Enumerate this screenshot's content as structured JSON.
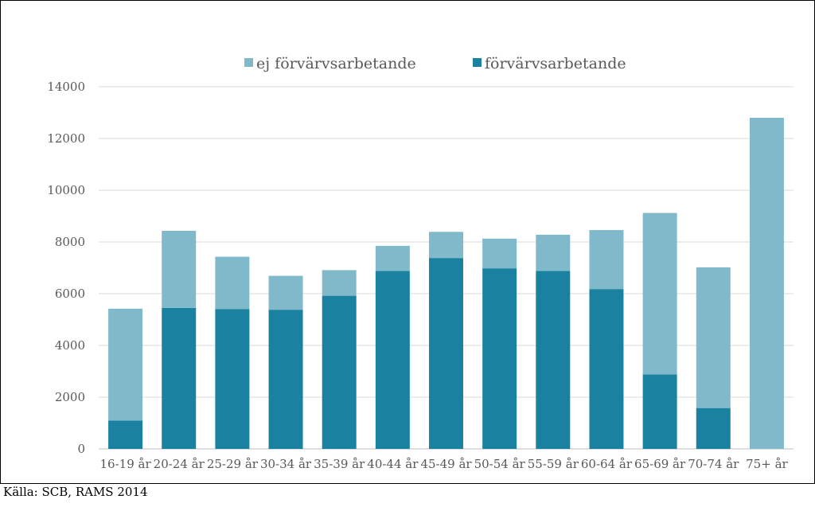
{
  "chart_data": {
    "type": "bar",
    "stacked": true,
    "categories": [
      "16-19 år",
      "20-24 år",
      "25-29 år",
      "30-34 år",
      "35-39 år",
      "40-44 år",
      "45-49 år",
      "50-54 år",
      "55-59 år",
      "60-64 år",
      "65-69 år",
      "70-74 år",
      "75+ år"
    ],
    "series": [
      {
        "name": "förvärvsarbetande",
        "color": "#1b81a0",
        "values": [
          1100,
          5450,
          5400,
          5380,
          5920,
          6880,
          7380,
          6980,
          6880,
          6180,
          2880,
          1580,
          0
        ]
      },
      {
        "name": "ej förvärvsarbetande",
        "color": "#7fb9ca",
        "values": [
          4320,
          2980,
          2030,
          1310,
          990,
          970,
          1010,
          1150,
          1400,
          2280,
          6240,
          5440,
          12800
        ]
      }
    ],
    "legend_order": [
      "ej förvärvsarbetande",
      "förvärvsarbetande"
    ],
    "legend_position": "top",
    "yticks": [
      "0",
      "2000",
      "4000",
      "6000",
      "8000",
      "10000",
      "12000",
      "14000"
    ],
    "ylim": [
      0,
      14000
    ],
    "grid": true,
    "title": "",
    "xlabel": "",
    "ylabel": ""
  },
  "source": "Källa: SCB, RAMS 2014"
}
